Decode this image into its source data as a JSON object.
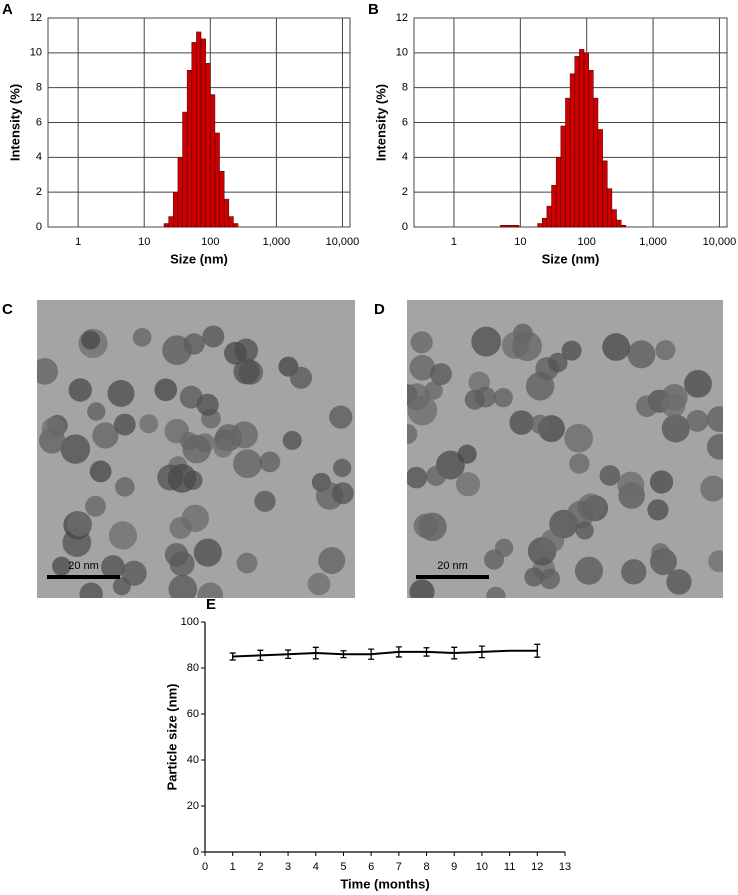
{
  "chart_data": [
    {
      "type": "histogram",
      "label": "A",
      "x_label": "Size (nm)",
      "y_label": "Intensity (%)",
      "xscale": "log",
      "grid": true,
      "color": "#cc0000",
      "xlim": [
        0.35,
        13000
      ],
      "xticks": [
        1,
        10,
        100,
        {
          "value": 1000,
          "label": "1,000"
        },
        {
          "value": 10000,
          "label": "10,000"
        }
      ],
      "ylim": [
        0,
        12
      ],
      "yticks": [
        0,
        2,
        4,
        6,
        8,
        10,
        12
      ],
      "bins": [
        19.95,
        23.44,
        27.54,
        32.36,
        38.02,
        44.67,
        52.48,
        61.66,
        72.44,
        85.11,
        100,
        117.5,
        138.0,
        162.2,
        190.5,
        223.9,
        263.0
      ],
      "values": [
        0.2,
        0.6,
        2.0,
        4.0,
        6.6,
        9.0,
        10.6,
        11.2,
        10.8,
        9.4,
        7.6,
        5.4,
        3.2,
        1.6,
        0.6,
        0.2
      ]
    },
    {
      "type": "histogram",
      "label": "B",
      "x_label": "Size (nm)",
      "y_label": "Intensity (%)",
      "xscale": "log",
      "grid": true,
      "color": "#cc0000",
      "xlim": [
        0.25,
        13000
      ],
      "xticks": [
        1,
        10,
        100,
        {
          "value": 1000,
          "label": "1,000"
        },
        {
          "value": 10000,
          "label": "10,000"
        }
      ],
      "ylim": [
        0,
        12
      ],
      "yticks": [
        0,
        2,
        4,
        6,
        8,
        10,
        12
      ],
      "bins": [
        5.01,
        5.89,
        6.92,
        8.13,
        9.55,
        11.22,
        13.18,
        15.49,
        18.2,
        21.38,
        25.12,
        29.51,
        34.67,
        40.74,
        47.86,
        56.23,
        66.07,
        77.62,
        91.2,
        107.2,
        125.9,
        147.9,
        173.8,
        204.2,
        239.9,
        281.8,
        331.1,
        389.0
      ],
      "values": [
        0.1,
        0.1,
        0.1,
        0.1,
        0,
        0,
        0,
        0,
        0.2,
        0.5,
        1.2,
        2.4,
        4.0,
        5.8,
        7.4,
        8.8,
        9.8,
        10.2,
        10.0,
        9.0,
        7.4,
        5.6,
        3.8,
        2.2,
        1.0,
        0.4,
        0.1
      ]
    },
    {
      "type": "line",
      "label": "E",
      "x_label": "Time (months)",
      "y_label": "Particle size (nm)",
      "color": "#000000",
      "xlim": [
        0,
        13
      ],
      "xticks": [
        0,
        1,
        2,
        3,
        4,
        5,
        6,
        7,
        8,
        9,
        10,
        11,
        12,
        13
      ],
      "ylim": [
        0,
        100
      ],
      "yticks": [
        0,
        20,
        40,
        60,
        80,
        100
      ],
      "x": [
        1,
        2,
        3,
        4,
        5,
        6,
        7,
        8,
        9,
        10,
        11,
        12
      ],
      "values": [
        85,
        85.5,
        86,
        86.5,
        86,
        86,
        87,
        87,
        86.5,
        87,
        87.5,
        87.5
      ],
      "errors": [
        1.5,
        2.2,
        1.8,
        2.5,
        1.5,
        2.2,
        2.2,
        1.8,
        2.5,
        2.5,
        0,
        2.8
      ]
    }
  ],
  "images": [
    {
      "label": "C",
      "scale_bar": "20 nm"
    },
    {
      "label": "D",
      "scale_bar": "20 nm"
    }
  ]
}
